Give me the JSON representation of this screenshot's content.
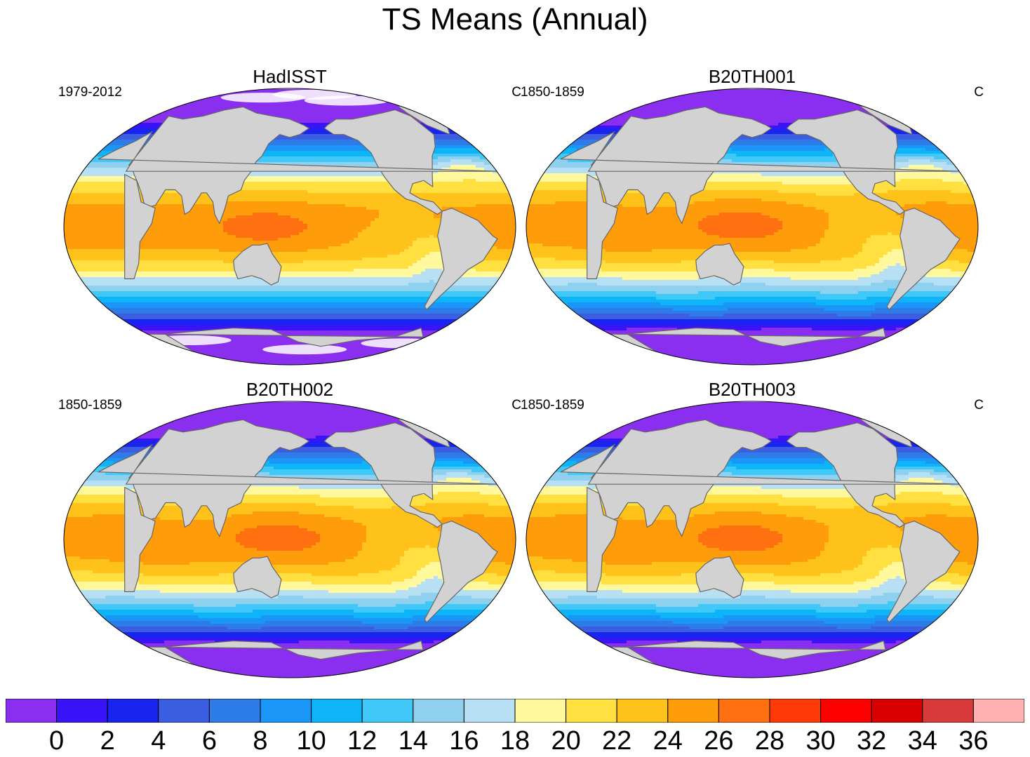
{
  "figure": {
    "title": "TS Means (Annual)"
  },
  "panels": [
    {
      "title": "HadISST",
      "left_label": "1979-2012",
      "right_label": "C",
      "variant": "obs"
    },
    {
      "title": "B20TH001",
      "left_label": "1850-1859",
      "right_label": "C",
      "variant": "model"
    },
    {
      "title": "B20TH002",
      "left_label": "1850-1859",
      "right_label": "C",
      "variant": "model"
    },
    {
      "title": "B20TH003",
      "left_label": "1850-1859",
      "right_label": "C",
      "variant": "model"
    }
  ],
  "colorbar": {
    "unit": "C",
    "levels": [
      "0",
      "2",
      "4",
      "6",
      "8",
      "10",
      "12",
      "14",
      "16",
      "18",
      "20",
      "22",
      "24",
      "26",
      "28",
      "30",
      "32",
      "34",
      "36"
    ],
    "colors": [
      "#8a2ef0",
      "#3a14f8",
      "#1a24f0",
      "#3c5ee0",
      "#2e7ce8",
      "#1a96f8",
      "#0eb4f8",
      "#40c8f8",
      "#8ed0ee",
      "#b8e0f4",
      "#fff89c",
      "#ffe040",
      "#ffc21a",
      "#ff9c0a",
      "#ff7010",
      "#ff3a08",
      "#ff0000",
      "#d80000",
      "#d83a3a",
      "#ffb0b0"
    ]
  },
  "map_colors": {
    "land": "#d2d2d2",
    "coast": "#666666",
    "missing": "#ffffff"
  }
}
